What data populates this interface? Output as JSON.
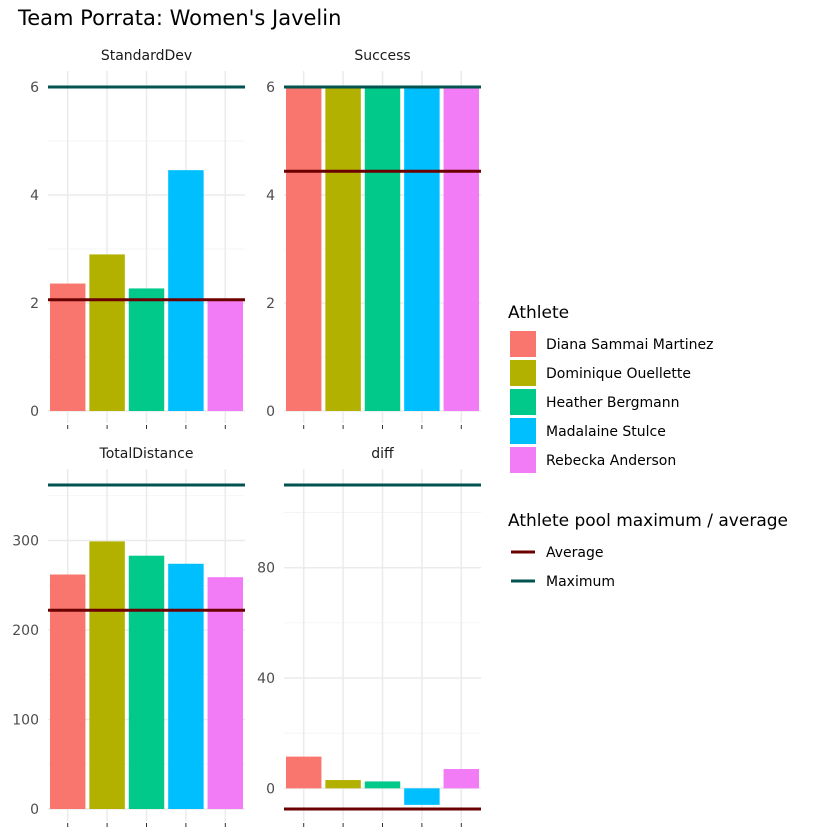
{
  "chart_data": {
    "type": "bar",
    "title": "Team Porrata: Women's Javelin",
    "categories": [
      "Diana Sammai Martinez",
      "Dominique Ouellette",
      "Heather Bergmann",
      "Madalaine Stulce",
      "Rebecka Anderson"
    ],
    "colors": [
      "#F8766D",
      "#B2B100",
      "#00C98A",
      "#00BFFF",
      "#F27CF6"
    ],
    "legend": {
      "position": "right",
      "fill_title": "Athlete",
      "line_title": "Athlete pool maximum / average",
      "lines": [
        {
          "name": "Average",
          "color": "#6B0000"
        },
        {
          "name": "Maximum",
          "color": "#00534F"
        }
      ]
    },
    "grid": true,
    "panels": [
      {
        "name": "StandardDev",
        "values": [
          2.36,
          2.9,
          2.27,
          4.46,
          2.06
        ],
        "average": 2.06,
        "maximum": 6.0,
        "ylim": [
          0,
          6.0
        ],
        "yticks": [
          0,
          2,
          4,
          6
        ]
      },
      {
        "name": "Success",
        "values": [
          6,
          6,
          6,
          6,
          6
        ],
        "average": 4.44,
        "maximum": 6.0,
        "ylim": [
          0,
          6.0
        ],
        "yticks": [
          0,
          2,
          4,
          6
        ]
      },
      {
        "name": "TotalDistance",
        "values": [
          262,
          299,
          283,
          274,
          259
        ],
        "average": 222,
        "maximum": 362,
        "ylim": [
          0,
          362
        ],
        "yticks": [
          0,
          100,
          200,
          300
        ]
      },
      {
        "name": "diff",
        "values": [
          11.5,
          3.0,
          2.5,
          -6.0,
          7.0
        ],
        "average": -7.5,
        "maximum": 110,
        "ylim": [
          -7.5,
          110
        ],
        "yticks": [
          0,
          40,
          80
        ]
      }
    ]
  }
}
